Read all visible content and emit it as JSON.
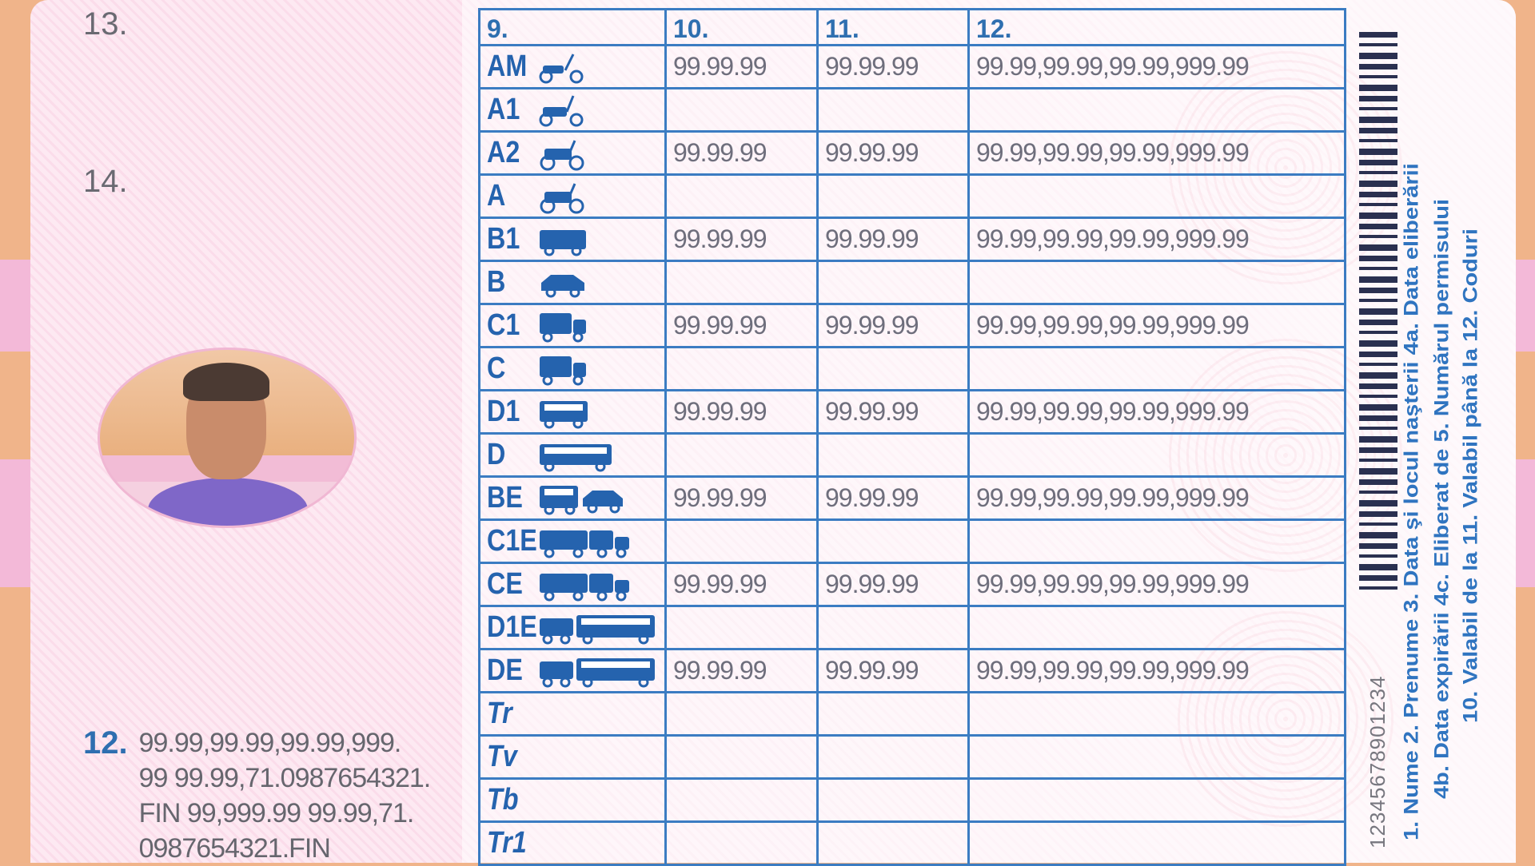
{
  "fields": {
    "n13": "13.",
    "n14": "14.",
    "n12": "12."
  },
  "codes_text": [
    "99.99,99.99,99.99,999.",
    "99 99.99,71.0987654321.",
    "FIN 99,999.99 99.99,71.",
    "0987654321.FIN"
  ],
  "table": {
    "headers": [
      "9.",
      "10.",
      "11.",
      "12."
    ],
    "rows": [
      {
        "cat": "AM",
        "icon": "scooter-icon",
        "from": "99.99.99",
        "to": "99.99.99",
        "codes": "99.99,99.99,99.99,999.99"
      },
      {
        "cat": "A1",
        "icon": "moped-icon",
        "from": "",
        "to": "",
        "codes": ""
      },
      {
        "cat": "A2",
        "icon": "motorcycle-icon",
        "from": "99.99.99",
        "to": "99.99.99",
        "codes": "99.99,99.99,99.99,999.99"
      },
      {
        "cat": "A",
        "icon": "motorcycle-icon",
        "from": "",
        "to": "",
        "codes": ""
      },
      {
        "cat": "B1",
        "icon": "van-icon",
        "from": "99.99.99",
        "to": "99.99.99",
        "codes": "99.99,99.99,99.99,999.99"
      },
      {
        "cat": "B",
        "icon": "car-icon",
        "from": "",
        "to": "",
        "codes": ""
      },
      {
        "cat": "C1",
        "icon": "truck-icon",
        "from": "99.99.99",
        "to": "99.99.99",
        "codes": "99.99,99.99,99.99,999.99"
      },
      {
        "cat": "C",
        "icon": "truck-icon",
        "from": "",
        "to": "",
        "codes": ""
      },
      {
        "cat": "D1",
        "icon": "minibus-icon",
        "from": "99.99.99",
        "to": "99.99.99",
        "codes": "99.99,99.99,99.99,999.99"
      },
      {
        "cat": "D",
        "icon": "bus-icon",
        "from": "",
        "to": "",
        "codes": ""
      },
      {
        "cat": "BE",
        "icon": "car-trailer-icon",
        "from": "99.99.99",
        "to": "99.99.99",
        "codes": "99.99,99.99,99.99,999.99"
      },
      {
        "cat": "C1E",
        "icon": "truck-trailer-icon",
        "from": "",
        "to": "",
        "codes": ""
      },
      {
        "cat": "CE",
        "icon": "truck-trailer-icon",
        "from": "99.99.99",
        "to": "99.99.99",
        "codes": "99.99,99.99,99.99,999.99"
      },
      {
        "cat": "D1E",
        "icon": "bus-trailer-icon",
        "from": "",
        "to": "",
        "codes": ""
      },
      {
        "cat": "DE",
        "icon": "bus-trailer-icon",
        "from": "99.99.99",
        "to": "99.99.99",
        "codes": "99.99,99.99,99.99,999.99"
      },
      {
        "cat": "Tr",
        "icon": "",
        "from": "",
        "to": "",
        "codes": ""
      },
      {
        "cat": "Tv",
        "icon": "",
        "from": "",
        "to": "",
        "codes": ""
      },
      {
        "cat": "Tb",
        "icon": "",
        "from": "",
        "to": "",
        "codes": ""
      },
      {
        "cat": "Tr1",
        "icon": "",
        "from": "",
        "to": "",
        "codes": ""
      }
    ]
  },
  "barcode_number": "12345678901234",
  "legend": [
    "1. Nume  2. Prenume  3. Data şi locul naşterii  4a. Data eliberării",
    "4b. Data expirării  4c. Eliberat de  5. Numărul permisului",
    "10. Valabil de la  11. Valabil până la  12. Coduri"
  ],
  "colors": {
    "accent": "#2e6fb0",
    "values": "#6e6e7c",
    "border": "#f0b48a"
  }
}
